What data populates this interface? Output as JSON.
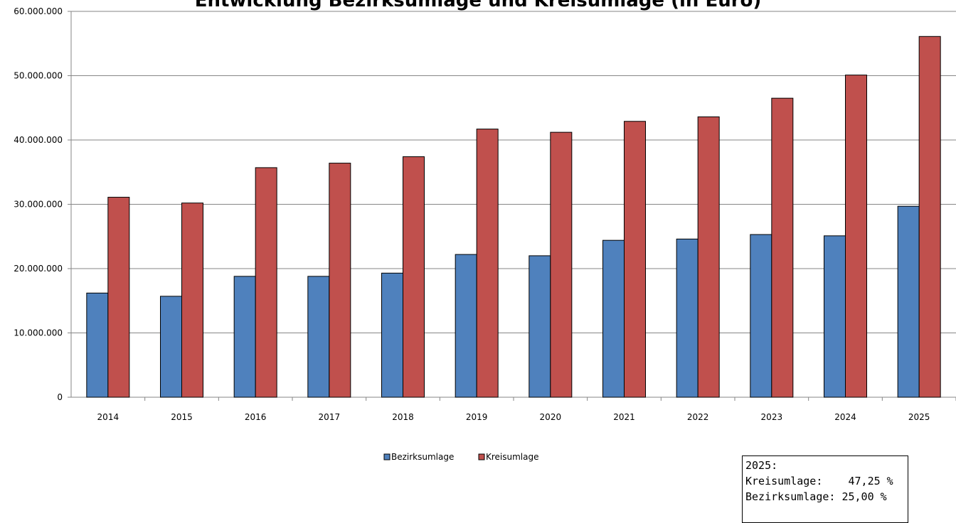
{
  "chart_data": {
    "type": "bar",
    "title": "Entwicklung Bezirksumlage und Kreisumlage (in Euro)",
    "categories": [
      "2014",
      "2015",
      "2016",
      "2017",
      "2018",
      "2019",
      "2020",
      "2021",
      "2022",
      "2023",
      "2024",
      "2025"
    ],
    "series": [
      {
        "name": "Bezirksumlage",
        "color": "#4f81bd",
        "values": [
          16200000,
          15700000,
          18800000,
          18800000,
          19300000,
          22200000,
          22000000,
          24400000,
          24600000,
          25300000,
          25100000,
          29700000
        ]
      },
      {
        "name": "Kreisumlage",
        "color": "#c0504d",
        "values": [
          31100000,
          30200000,
          35700000,
          36400000,
          37400000,
          41700000,
          41200000,
          42900000,
          43600000,
          46500000,
          50100000,
          56100000
        ]
      }
    ],
    "ylim": [
      0,
      60000000
    ],
    "yticks": [
      0,
      10000000,
      20000000,
      30000000,
      40000000,
      50000000,
      60000000
    ],
    "ytick_labels": [
      "0",
      "10.000.000",
      "20.000.000",
      "30.000.000",
      "40.000.000",
      "50.000.000",
      "60.000.000"
    ],
    "grid": true,
    "legend": "bottom-center"
  },
  "info_box": {
    "heading": "2025:",
    "rows": [
      {
        "label": "Kreisumlage:",
        "value": "47,25 %"
      },
      {
        "label": "Bezirksumlage:",
        "value": "25,00 %"
      }
    ]
  }
}
